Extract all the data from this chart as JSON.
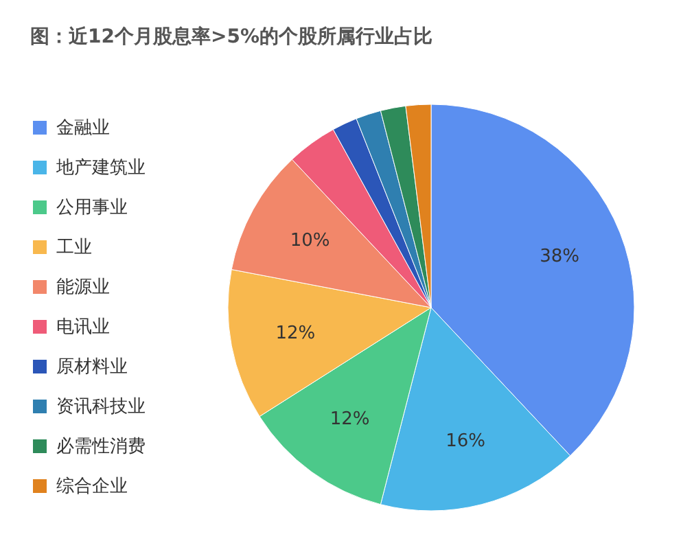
{
  "chart_data": {
    "type": "pie",
    "title": "图：近12个月股息率>5%的个股所属行业占比",
    "categories": [
      "金融业",
      "地产建筑业",
      "公用事业",
      "工业",
      "能源业",
      "电讯业",
      "原材料业",
      "资讯科技业",
      "必需性消费",
      "综合企业"
    ],
    "values": [
      38,
      16,
      12,
      12,
      10,
      4,
      2,
      2,
      2,
      2
    ],
    "colors": [
      "#5b8ff0",
      "#4ab5e8",
      "#4cc98a",
      "#f8b84e",
      "#f2876a",
      "#ef5b78",
      "#2b56b8",
      "#2f7fb0",
      "#2e8b5a",
      "#e0821e"
    ],
    "value_labels": [
      "38%",
      "16%",
      "12%",
      "12%",
      "10%",
      null,
      null,
      null,
      null,
      null
    ],
    "legend": "left"
  }
}
